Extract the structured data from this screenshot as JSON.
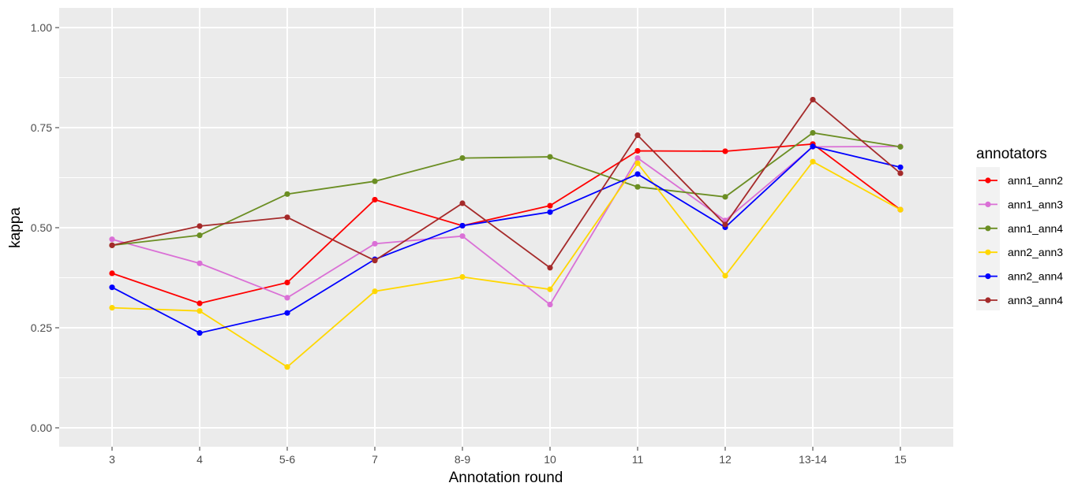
{
  "chart_data": {
    "type": "line",
    "xlabel": "Annotation round",
    "ylabel": "kappa",
    "ylim": [
      0,
      1
    ],
    "yticks": [
      "0.00",
      "0.25",
      "0.50",
      "0.75",
      "1.00"
    ],
    "categories": [
      "3",
      "4",
      "5-6",
      "7",
      "8-9",
      "10",
      "11",
      "12",
      "13-14",
      "15"
    ],
    "grid": true,
    "background": "#ebebeb",
    "legend": {
      "title": "annotators",
      "position": "right"
    },
    "series": [
      {
        "name": "ann1_ann2",
        "color": "#ff0000",
        "values": [
          0.386,
          0.311,
          0.363,
          0.57,
          0.505,
          0.555,
          0.692,
          0.691,
          0.709,
          0.545
        ]
      },
      {
        "name": "ann1_ann3",
        "color": "#da70d6",
        "values": [
          0.471,
          0.411,
          0.325,
          0.46,
          0.479,
          0.308,
          0.674,
          0.518,
          0.702,
          0.703
        ]
      },
      {
        "name": "ann1_ann4",
        "color": "#6b8e23",
        "values": [
          0.456,
          0.481,
          0.584,
          0.616,
          0.674,
          0.677,
          0.602,
          0.577,
          0.737,
          0.702
        ]
      },
      {
        "name": "ann2_ann3",
        "color": "#ffd700",
        "values": [
          0.3,
          0.292,
          0.152,
          0.341,
          0.377,
          0.346,
          0.661,
          0.38,
          0.665,
          0.545
        ]
      },
      {
        "name": "ann2_ann4",
        "color": "#0000ff",
        "values": [
          0.351,
          0.237,
          0.287,
          0.421,
          0.505,
          0.539,
          0.634,
          0.501,
          0.703,
          0.651
        ]
      },
      {
        "name": "ann3_ann4",
        "color": "#a52a2a",
        "values": [
          0.456,
          0.504,
          0.526,
          0.418,
          0.561,
          0.4,
          0.731,
          0.508,
          0.82,
          0.636
        ]
      }
    ]
  }
}
